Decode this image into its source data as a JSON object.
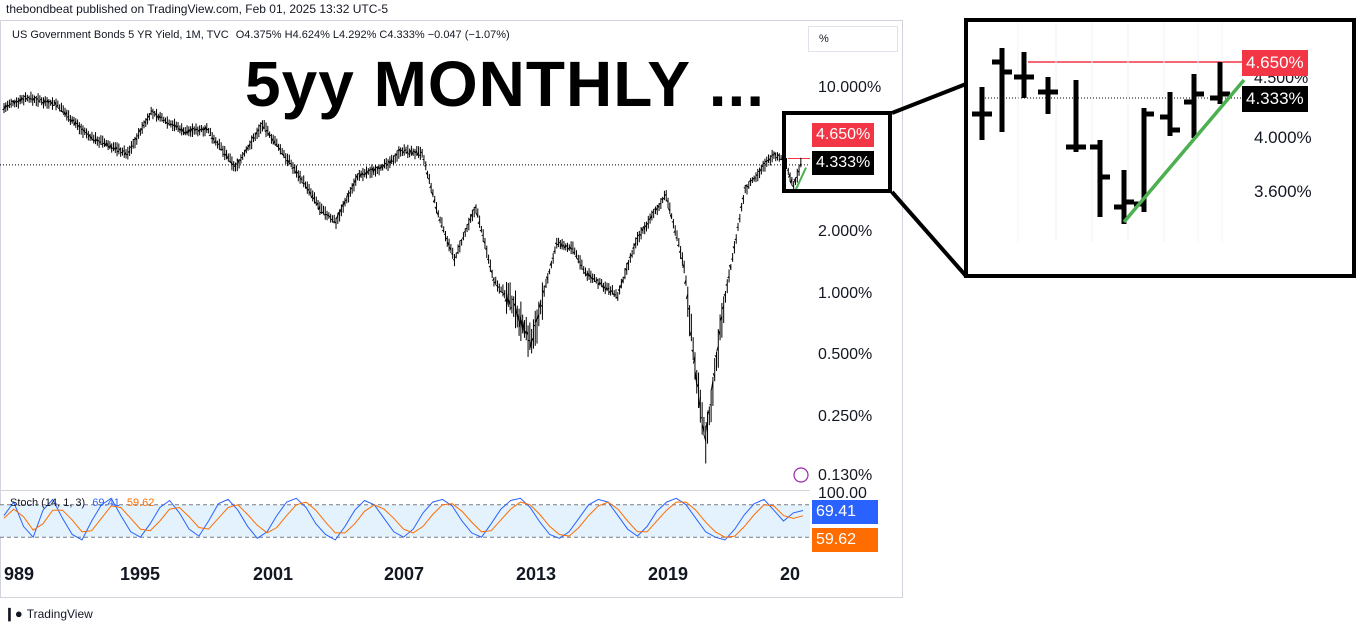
{
  "header": {
    "publisher_line": "thebondbeat published on TradingView.com, Feb 01, 2025 13:32 UTC-5"
  },
  "legend": {
    "symbol": "US Government Bonds 5 YR Yield, 1M, TVC",
    "ohlc": "O4.375%  H4.624%  L4.292%  C4.333%  −0.047 (−1.07%)"
  },
  "annotation": {
    "title": "5yy MONTHLY ..."
  },
  "scale_button": "%",
  "price_axis": {
    "ticks": [
      "10.000%",
      "2.000%",
      "1.000%",
      "0.500%",
      "0.250%",
      "0.130%"
    ],
    "badge_red": "4.650%",
    "badge_black": "4.333%"
  },
  "stoch": {
    "label": "Stoch (14, 1, 3)",
    "k_value_label": "69.41",
    "d_value_label": "59.62",
    "axis_top": "100.00",
    "badge_k": "69.41",
    "badge_d": "59.62"
  },
  "time_axis": {
    "ticks": [
      "989",
      "1995",
      "2001",
      "2007",
      "2013",
      "2019",
      "20"
    ]
  },
  "zoom": {
    "ticks": [
      "4.000%",
      "3.600%"
    ],
    "badge_red": "4.650%",
    "badge_black": "4.333%",
    "partial_tick": "4.500%"
  },
  "footer": {
    "brand": "TradingView"
  },
  "colors": {
    "red": "#f23645",
    "black": "#000000",
    "green": "#4caf50",
    "blue": "#2962ff",
    "orange": "#ff6d00",
    "band": "#e3f2fd"
  },
  "chart_data": [
    {
      "type": "line",
      "title": "",
      "scale": "log",
      "ylim": [
        0.13,
        14
      ],
      "x_range": [
        "1988",
        "2025"
      ],
      "series": [
        {
          "x": [
            "1988-01",
            "1989-01",
            "1990-06",
            "1991-12",
            "1993-10",
            "1994-11",
            "1996-06",
            "1997-06",
            "1998-10",
            "2000-01",
            "2001-11",
            "2002-10",
            "2003-06",
            "2004-06",
            "2005-12",
            "2006-06",
            "2007-06",
            "2008-03",
            "2008-12",
            "2009-12",
            "2010-10",
            "2011-09",
            "2012-07",
            "2013-09",
            "2014-06",
            "2015-01",
            "2016-07",
            "2017-06",
            "2018-10",
            "2019-08",
            "2020-03",
            "2020-08",
            "2021-06",
            "2022-06",
            "2023-10",
            "2024-04",
            "2024-09",
            "2025-01"
          ],
          "values": [
            8.2,
            9.2,
            8.6,
            6.0,
            4.9,
            7.8,
            6.3,
            6.5,
            4.2,
            6.8,
            3.7,
            2.6,
            2.3,
            3.8,
            4.4,
            5.1,
            4.9,
            2.5,
            1.5,
            2.7,
            1.2,
            0.9,
            0.6,
            1.8,
            1.7,
            1.3,
            1.0,
            1.9,
            3.1,
            1.4,
            0.4,
            0.2,
            0.9,
            3.3,
            4.9,
            4.6,
            3.4,
            4.333
          ]
        }
      ],
      "levels": {
        "red_line": 4.65,
        "last": 4.333
      }
    },
    {
      "type": "line",
      "title": "",
      "ylim": [
        0,
        100
      ],
      "series": [
        {
          "name": "%K",
          "values": [
            60,
            85,
            40,
            20,
            70,
            90,
            55,
            25,
            15,
            50,
            80,
            92,
            60,
            30,
            20,
            45,
            75,
            88,
            65,
            35,
            22,
            50,
            82,
            90,
            70,
            40,
            18,
            30,
            60,
            85,
            92,
            75,
            45,
            25,
            15,
            40,
            70,
            88,
            80,
            55,
            30,
            20,
            35,
            65,
            85,
            90,
            78,
            50,
            28,
            20,
            45,
            72,
            88,
            92,
            75,
            48,
            25,
            18,
            30,
            55,
            80,
            90,
            85,
            60,
            35,
            22,
            40,
            68,
            85,
            92,
            80,
            55,
            30,
            20,
            15,
            35,
            62,
            82,
            90,
            70,
            50,
            65,
            69.41
          ]
        },
        {
          "name": "%D",
          "values": [
            55,
            72,
            58,
            33,
            45,
            70,
            70,
            52,
            30,
            32,
            55,
            78,
            75,
            55,
            35,
            32,
            50,
            72,
            75,
            58,
            38,
            35,
            55,
            75,
            80,
            62,
            42,
            28,
            38,
            60,
            80,
            85,
            70,
            48,
            28,
            28,
            45,
            68,
            80,
            72,
            55,
            35,
            28,
            40,
            62,
            80,
            82,
            68,
            48,
            30,
            32,
            52,
            72,
            85,
            80,
            62,
            40,
            25,
            22,
            38,
            60,
            78,
            85,
            72,
            50,
            30,
            30,
            50,
            70,
            85,
            85,
            70,
            48,
            30,
            20,
            22,
            40,
            62,
            80,
            78,
            60,
            55,
            59.62
          ]
        }
      ],
      "levels": [
        20,
        80
      ]
    }
  ]
}
